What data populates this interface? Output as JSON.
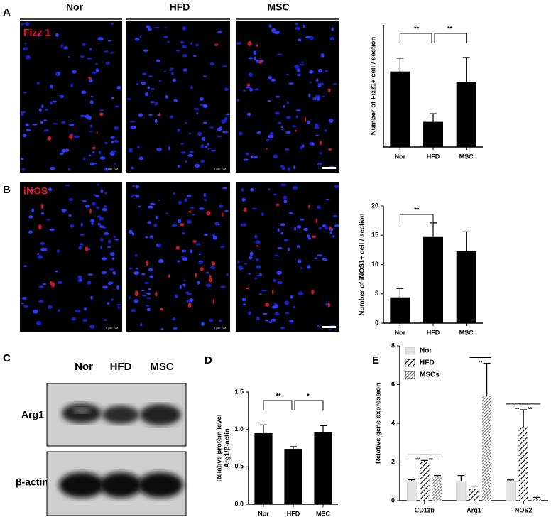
{
  "panel_labels": [
    "A",
    "B",
    "C",
    "D",
    "E"
  ],
  "image_columns": [
    "Nor",
    "HFD",
    "MSC"
  ],
  "image_rows": [
    "Fizz 1",
    "iNOS"
  ],
  "scale_label": "0 μm 100",
  "blot": {
    "columns": [
      "Nor",
      "HFD",
      "MSC"
    ],
    "rows": [
      "Arg1",
      "β-actin"
    ]
  },
  "chart_data": [
    {
      "type": "bar",
      "ylabel": [
        "Number of Fizz1+ cell / section"
      ],
      "categories": [
        "Nor",
        "HFD",
        "MSC"
      ],
      "values": [
        10.2,
        3.4,
        8.8
      ],
      "errors": [
        1.8,
        1.1,
        3.3
      ],
      "color": "#000000",
      "ylim": [
        0,
        16.5
      ],
      "annotations": [
        {
          "label": "**",
          "from": 0,
          "to": 1
        },
        {
          "label": "**",
          "from": 1,
          "to": 2
        }
      ]
    },
    {
      "type": "bar",
      "ylabel": [
        "Number of iNOS1+ cell / section"
      ],
      "categories": [
        "Nor",
        "HFD",
        "MSC"
      ],
      "values": [
        4.4,
        14.7,
        12.3
      ],
      "errors": [
        1.5,
        2.4,
        3.3
      ],
      "color": "#000000",
      "ylim": [
        0,
        20
      ],
      "yticks": [
        0,
        5,
        10,
        15,
        20
      ],
      "annotations": [
        {
          "label": "**",
          "from": 0,
          "to": 1
        }
      ]
    },
    {
      "type": "bar",
      "ylabel": [
        "Relative protein level",
        "Arg1/β-actin"
      ],
      "categories": [
        "Nor",
        "HFD",
        "MSC"
      ],
      "values": [
        0.95,
        0.74,
        0.96
      ],
      "errors": [
        0.11,
        0.03,
        0.09
      ],
      "color": "#000000",
      "ylim": [
        0,
        1.5
      ],
      "yticks": [
        {
          "value": 0,
          "label": "0.0"
        },
        {
          "value": 0.5,
          "label": "0.5"
        },
        {
          "value": 1,
          "label": "1.0"
        },
        {
          "value": 1.5,
          "label": "1.5"
        }
      ],
      "annotations": [
        {
          "label": "**",
          "from": 0,
          "to": 1
        },
        {
          "label": "*",
          "from": 1,
          "to": 2
        }
      ]
    },
    {
      "type": "bar",
      "ylabel": [
        "Relative gene expression"
      ],
      "categories": [
        "CD11b",
        "Arg1",
        "NOS2"
      ],
      "series": [
        {
          "name": "Nor",
          "color": "#e2e2e2",
          "values": [
            1.0,
            1.0,
            1.0
          ],
          "errors": [
            0.08,
            0.3,
            0.07
          ]
        },
        {
          "name": "HFD",
          "color": "#000000",
          "hatch": "sparse",
          "values": [
            2.0,
            0.6,
            3.8
          ],
          "errors": [
            0.08,
            0.15,
            0.9
          ]
        },
        {
          "name": "MSCs",
          "color": "#000000",
          "hatch": "dense",
          "values": [
            1.2,
            5.4,
            0.12
          ],
          "errors": [
            0.1,
            1.7,
            0.05
          ]
        }
      ],
      "ylim": [
        0,
        8
      ],
      "yticks": [
        0,
        2,
        4,
        6,
        8
      ],
      "legend": "upper-left",
      "annotations": [
        {
          "label": "**",
          "category": 0,
          "from": 0,
          "to": 1
        },
        {
          "label": "**",
          "category": 0,
          "from": 1,
          "to": 2
        },
        {
          "label": "**",
          "category": 1,
          "from": 1,
          "to": 2
        },
        {
          "label": "**",
          "category": 2,
          "from": 0,
          "to": 1
        },
        {
          "label": "**",
          "category": 2,
          "from": 1,
          "to": 2
        }
      ]
    }
  ]
}
